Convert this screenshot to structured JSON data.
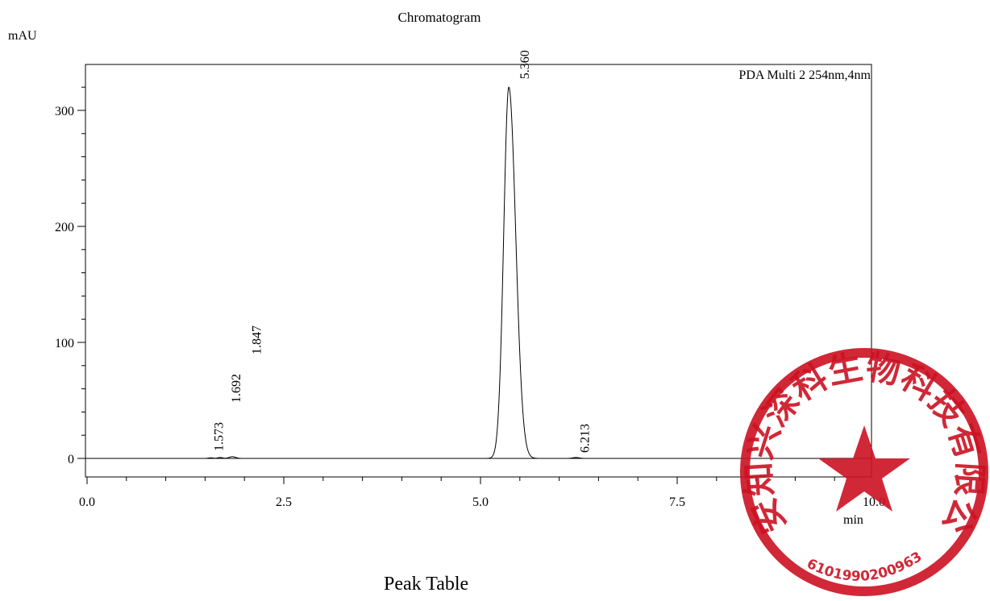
{
  "chart_data": {
    "type": "line",
    "title": "Chromatogram",
    "ylabel": "mAU",
    "xlabel": "min",
    "xlim": [
      0,
      10
    ],
    "ylim": [
      -18,
      340
    ],
    "xticks": [
      "0.0",
      "2.5",
      "5.0",
      "7.5",
      "10.0"
    ],
    "yticks": [
      "0",
      "100",
      "200",
      "300"
    ],
    "legend": "PDA Multi 2 254nm,4nm",
    "grid": false,
    "peaks": [
      {
        "rt": 1.573,
        "label": "1.573",
        "height": 0.5,
        "width": 0.03
      },
      {
        "rt": 1.692,
        "label": "1.692",
        "height": 0.8,
        "width": 0.03
      },
      {
        "rt": 1.847,
        "label": "1.847",
        "height": 1.5,
        "width": 0.04
      },
      {
        "rt": 5.36,
        "label": "5.360",
        "height": 320,
        "width": 0.065
      },
      {
        "rt": 6.213,
        "label": "6.213",
        "height": 0.8,
        "width": 0.04
      }
    ]
  },
  "footer": "Peak Table",
  "stamp": {
    "company": "西安知兴深科生物科技有限公司",
    "number": "6101990200963",
    "color": "#cc1122"
  }
}
